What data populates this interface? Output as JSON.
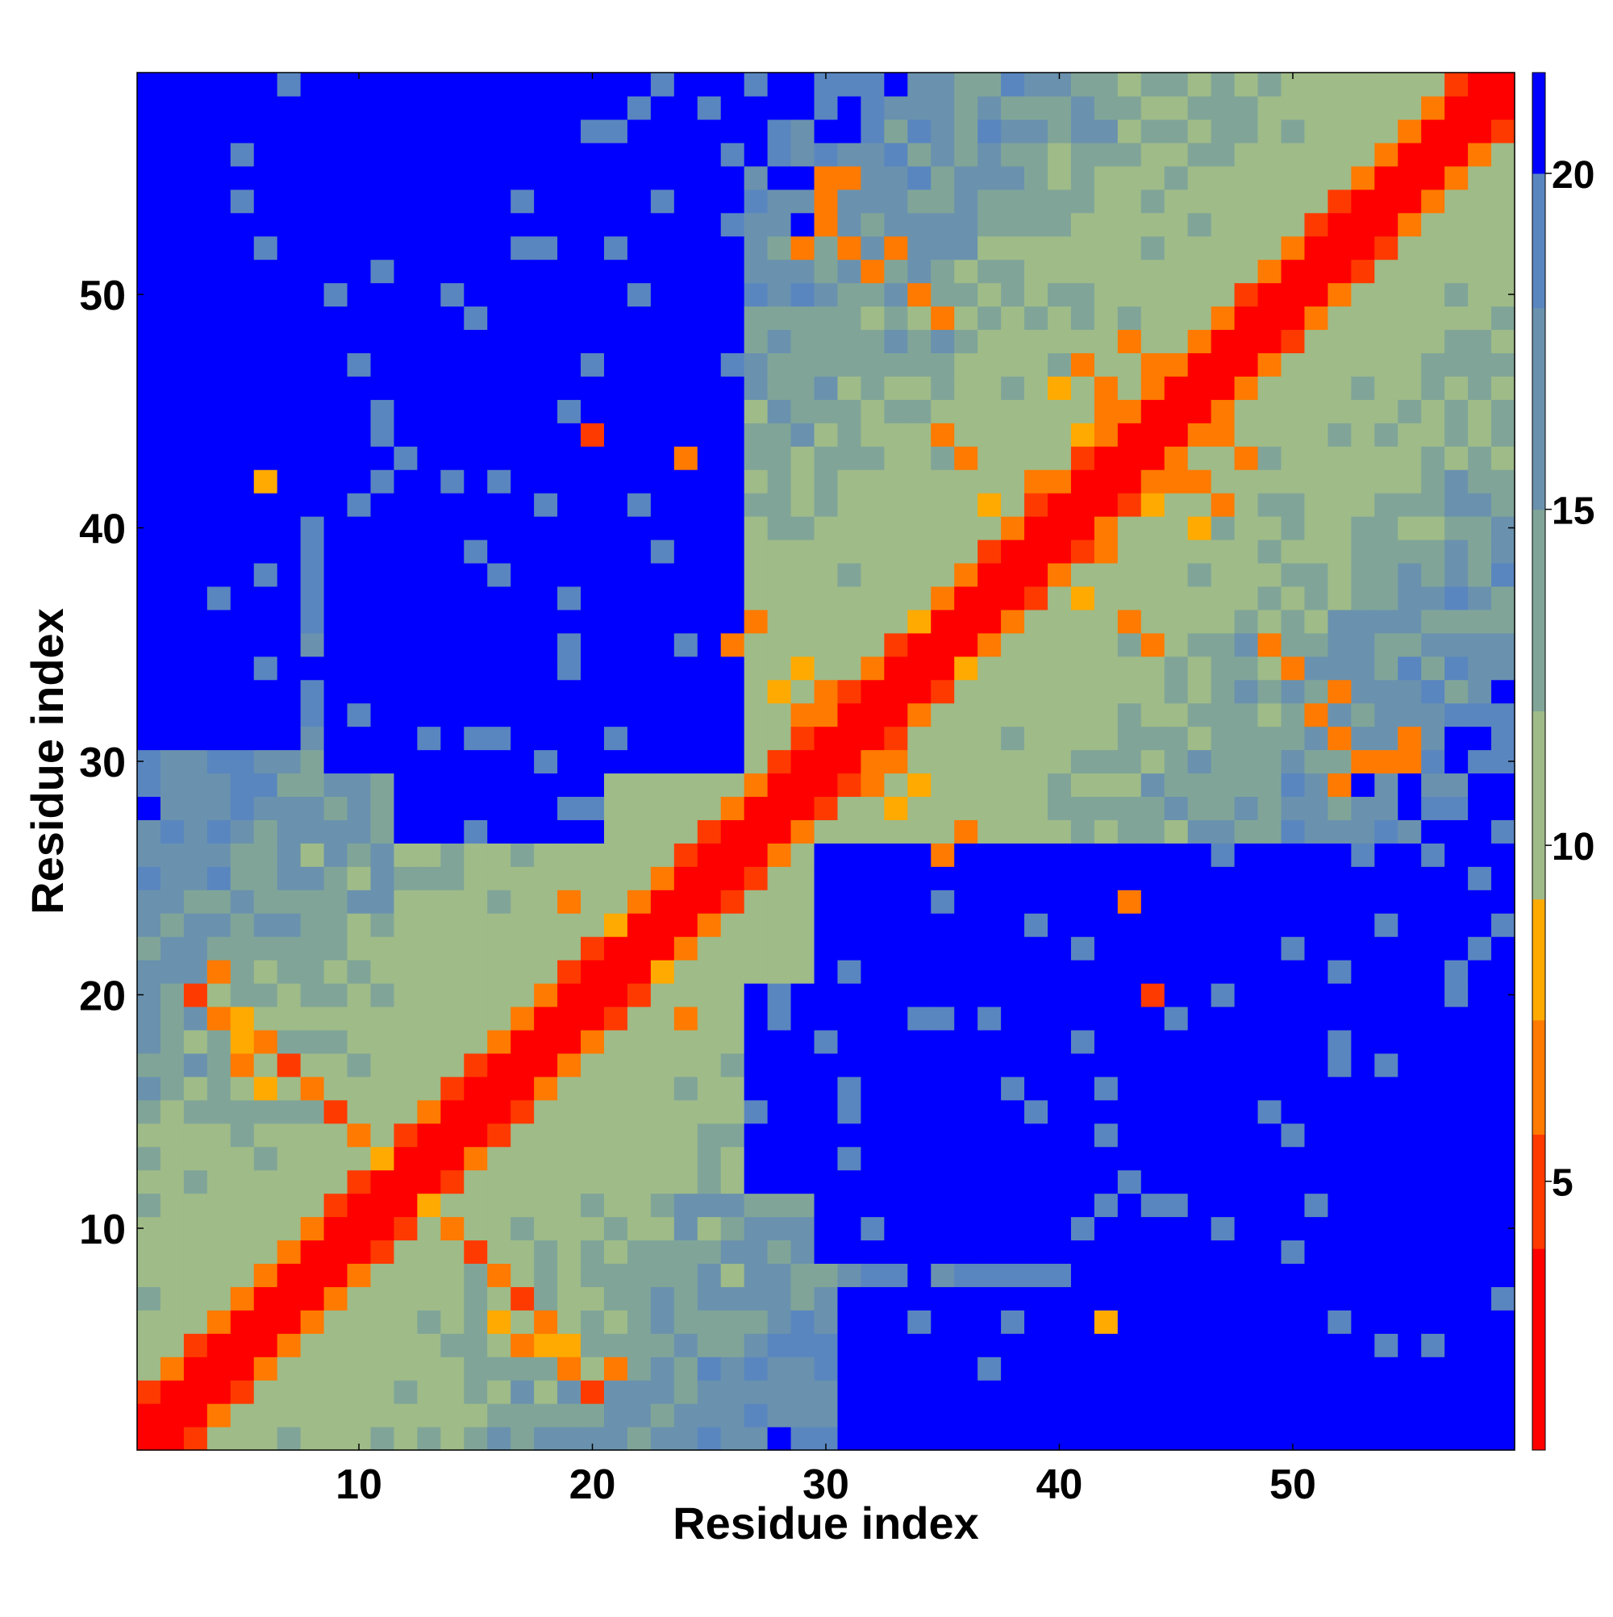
{
  "chart_data": {
    "type": "heatmap",
    "title": "",
    "xlabel": "Residue index",
    "ylabel": "Residue index",
    "n": 59,
    "xlim": [
      1,
      59
    ],
    "ylim": [
      1,
      59
    ],
    "x_ticks": [
      10,
      20,
      30,
      40,
      50
    ],
    "y_ticks": [
      10,
      20,
      30,
      40,
      50
    ],
    "colorbar": {
      "range": [
        1,
        21.5
      ],
      "ticks": [
        5,
        10,
        15,
        20
      ],
      "bands": [
        {
          "from": 1.0,
          "to": 4.0,
          "color": "#ff0000"
        },
        {
          "from": 4.0,
          "to": 5.7,
          "color": "#ff3a00"
        },
        {
          "from": 5.7,
          "to": 7.4,
          "color": "#ff7a00"
        },
        {
          "from": 7.4,
          "to": 9.2,
          "color": "#ffaa00"
        },
        {
          "from": 9.2,
          "to": 12.0,
          "color": "#9fbb88"
        },
        {
          "from": 12.0,
          "to": 15.0,
          "color": "#80a598"
        },
        {
          "from": 15.0,
          "to": 18.0,
          "color": "#6a92ae"
        },
        {
          "from": 18.0,
          "to": 20.0,
          "color": "#5a86c0"
        },
        {
          "from": 20.0,
          "to": 21.5,
          "color": "#0000ff"
        }
      ]
    },
    "value_description": "pairwise residue distance, symmetric matrix; estimated from colors",
    "blue_regions": [
      {
        "i": [
          9,
          26
        ],
        "j": [
          30,
          57
        ]
      },
      {
        "i": [
          12,
          20
        ],
        "j": [
          27,
          40
        ]
      },
      {
        "i": [
          1,
          7
        ],
        "j": [
          31,
          37
        ]
      },
      {
        "i": [
          1,
          9
        ],
        "j": [
          52,
          59
        ]
      }
    ],
    "orange_contacts": [
      [
        3,
        20
      ],
      [
        4,
        21
      ],
      [
        5,
        19
      ],
      [
        6,
        18
      ],
      [
        7,
        17
      ],
      [
        8,
        16
      ],
      [
        9,
        15
      ],
      [
        10,
        14
      ],
      [
        11,
        13
      ],
      [
        19,
        20
      ],
      [
        20,
        22
      ],
      [
        21,
        23
      ],
      [
        19,
        24
      ],
      [
        22,
        24
      ],
      [
        16,
        6
      ],
      [
        17,
        5
      ],
      [
        18,
        5
      ],
      [
        19,
        4
      ],
      [
        20,
        3
      ],
      [
        21,
        4
      ],
      [
        6,
        42
      ],
      [
        44,
        20
      ],
      [
        43,
        24
      ],
      [
        28,
        33
      ],
      [
        29,
        34
      ],
      [
        30,
        33
      ],
      [
        27,
        36
      ],
      [
        26,
        35
      ],
      [
        33,
        28
      ],
      [
        32,
        29
      ],
      [
        37,
        41
      ],
      [
        38,
        40
      ],
      [
        36,
        43
      ],
      [
        35,
        44
      ],
      [
        39,
        42
      ],
      [
        40,
        46
      ],
      [
        41,
        44
      ],
      [
        42,
        45
      ],
      [
        43,
        48
      ],
      [
        44,
        47
      ],
      [
        45,
        46
      ],
      [
        46,
        42
      ],
      [
        47,
        41
      ],
      [
        48,
        43
      ],
      [
        31,
        55
      ],
      [
        30,
        54
      ],
      [
        31,
        52
      ],
      [
        34,
        50
      ],
      [
        33,
        52
      ],
      [
        52,
        29
      ],
      [
        53,
        30
      ],
      [
        55,
        30
      ],
      [
        51,
        32
      ],
      [
        50,
        34
      ],
      [
        49,
        35
      ]
    ]
  }
}
